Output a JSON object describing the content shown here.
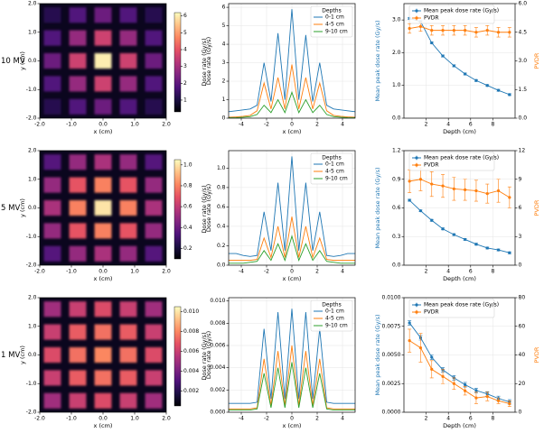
{
  "chart_data": [
    {
      "type": "heatmap",
      "row_label": "10 MV",
      "xlabel": "x (cm)",
      "ylabel": "y (cm)",
      "colorbar_label": "Dose rate (Gy/s)",
      "x": [
        -1.6,
        -0.8,
        0,
        0.8,
        1.6
      ],
      "y": [
        1.6,
        0.8,
        0,
        -0.8,
        -1.6
      ],
      "z": [
        [
          1.2,
          1.8,
          2.2,
          1.8,
          1.2
        ],
        [
          1.8,
          2.8,
          3.6,
          2.8,
          1.8
        ],
        [
          2.2,
          3.6,
          6.0,
          3.6,
          2.2
        ],
        [
          1.8,
          2.8,
          3.6,
          2.8,
          1.8
        ],
        [
          1.2,
          1.8,
          2.2,
          1.8,
          1.2
        ]
      ],
      "xlim": [
        -2,
        2
      ],
      "ylim": [
        -2,
        2
      ],
      "xticks": [
        {
          "value": -2,
          "label": "-2.0"
        },
        {
          "value": -1,
          "label": "-1.0"
        },
        {
          "value": 0,
          "label": "0.0"
        },
        {
          "value": 1,
          "label": "1.0"
        },
        {
          "value": 2,
          "label": "2.0"
        }
      ],
      "yticks": [
        {
          "value": -2,
          "label": "-2.0"
        },
        {
          "value": -1,
          "label": "-1.0"
        },
        {
          "value": 0,
          "label": "0.0"
        },
        {
          "value": 1,
          "label": "1.0"
        },
        {
          "value": 2,
          "label": "2.0"
        }
      ],
      "zlim": [
        0.3,
        6.2
      ],
      "zticks": [
        1,
        2,
        3,
        4,
        5,
        6
      ]
    },
    {
      "type": "line",
      "xlabel": "x (cm)",
      "ylabel": "Dose rate (Gy/s)",
      "legend_title": "Depths",
      "legend": "upper right",
      "grid": true,
      "x": [
        -5,
        -4.4,
        -3.85,
        -3.3,
        -2.75,
        -2.2,
        -1.65,
        -1.1,
        -0.55,
        0,
        0.55,
        1.1,
        1.65,
        2.2,
        2.75,
        3.3,
        3.85,
        4.4,
        5
      ],
      "xlim": [
        -5,
        5
      ],
      "xticks": [
        -4,
        -2,
        0,
        2,
        4
      ],
      "ylim": [
        0,
        6.2
      ],
      "yticks": [
        0,
        1,
        2,
        3,
        4,
        5,
        6
      ],
      "series": [
        {
          "name": "0-1 cm",
          "color": "#1f77b4",
          "values": [
            0.35,
            0.4,
            0.45,
            0.5,
            0.7,
            3.0,
            0.9,
            4.6,
            1.0,
            5.9,
            1.0,
            4.5,
            0.9,
            3.0,
            0.7,
            0.5,
            0.45,
            0.4,
            0.35
          ]
        },
        {
          "name": "4-5 cm",
          "color": "#ff7f0e",
          "values": [
            0.05,
            0.07,
            0.1,
            0.15,
            0.4,
            1.9,
            0.5,
            2.2,
            0.5,
            2.9,
            0.5,
            2.2,
            0.5,
            1.9,
            0.4,
            0.15,
            0.1,
            0.07,
            0.05
          ]
        },
        {
          "name": "9-10 cm",
          "color": "#2ca02c",
          "values": [
            0.02,
            0.03,
            0.05,
            0.08,
            0.2,
            0.7,
            0.3,
            1.0,
            0.3,
            1.4,
            0.3,
            1.0,
            0.3,
            0.7,
            0.2,
            0.08,
            0.05,
            0.03,
            0.02
          ]
        }
      ]
    },
    {
      "type": "dual_line",
      "xlabel": "Depth (cm)",
      "ylabel": "Mean peak dose rate (Gy/s)",
      "y2label": "PVDR",
      "grid": true,
      "x": [
        0.5,
        1.5,
        2.5,
        3.5,
        4.5,
        5.5,
        6.5,
        7.5,
        8.5,
        9.5
      ],
      "xlim": [
        0,
        10
      ],
      "xticks": [
        2,
        4,
        6,
        8
      ],
      "ylim": [
        0,
        3.5
      ],
      "yticks": [
        {
          "value": 0,
          "label": "0.0"
        },
        {
          "value": 1,
          "label": "1.0"
        },
        {
          "value": 2,
          "label": "2.0"
        },
        {
          "value": 3,
          "label": "3.0"
        }
      ],
      "y2lim": [
        0,
        6
      ],
      "y2ticks": [
        {
          "value": 0,
          "label": "0.0"
        },
        1.5,
        {
          "value": 3,
          "label": "3.0"
        },
        4.5,
        {
          "value": 6,
          "label": "6.0"
        }
      ],
      "series": [
        {
          "name": "Mean peak dose rate (Gy/s)",
          "color": "#1f77b4",
          "values": [
            3.05,
            2.95,
            2.3,
            1.9,
            1.6,
            1.35,
            1.15,
            1.0,
            0.85,
            0.72
          ],
          "errors": [
            0.03,
            0.03,
            0.03,
            0.03,
            0.03,
            0.03,
            0.03,
            0.03,
            0.03,
            0.03
          ]
        },
        {
          "name": "PVDR",
          "color": "#ff7f0e",
          "axis": "y2",
          "values": [
            4.7,
            4.8,
            4.6,
            4.6,
            4.6,
            4.6,
            4.5,
            4.6,
            4.5,
            4.5
          ],
          "errors": [
            0.25,
            0.25,
            0.25,
            0.25,
            0.25,
            0.25,
            0.25,
            0.25,
            0.25,
            0.25
          ]
        }
      ]
    },
    {
      "type": "heatmap",
      "row_label": "5 MV",
      "xlabel": "x (cm)",
      "ylabel": "y (cm)",
      "colorbar_label": "Dose rate (Gy/s)",
      "x": [
        -1.6,
        -0.8,
        0,
        0.8,
        1.6
      ],
      "y": [
        1.6,
        0.8,
        0,
        -0.8,
        -1.6
      ],
      "z": [
        [
          0.35,
          0.5,
          0.55,
          0.5,
          0.35
        ],
        [
          0.5,
          0.7,
          0.8,
          0.7,
          0.5
        ],
        [
          0.55,
          0.8,
          1.0,
          0.8,
          0.55
        ],
        [
          0.5,
          0.7,
          0.8,
          0.7,
          0.5
        ],
        [
          0.35,
          0.5,
          0.55,
          0.5,
          0.35
        ]
      ],
      "xlim": [
        -2,
        2
      ],
      "ylim": [
        -2,
        2
      ],
      "xticks": [
        {
          "value": -2,
          "label": "-2.0"
        },
        {
          "value": -1,
          "label": "-1.0"
        },
        {
          "value": 0,
          "label": "0.0"
        },
        {
          "value": 1,
          "label": "1.0"
        },
        {
          "value": 2,
          "label": "2.0"
        }
      ],
      "yticks": [
        {
          "value": -2,
          "label": "-2.0"
        },
        {
          "value": -1,
          "label": "-1.0"
        },
        {
          "value": 0,
          "label": "0.0"
        },
        {
          "value": 1,
          "label": "1.0"
        },
        {
          "value": 2,
          "label": "2.0"
        }
      ],
      "zlim": [
        0.1,
        1.05
      ],
      "zticks": [
        0.2,
        0.4,
        0.6,
        0.8,
        {
          "value": 1,
          "label": "1.0"
        }
      ]
    },
    {
      "type": "line",
      "xlabel": "x (cm)",
      "ylabel": "Dose rate (Gy/s)",
      "legend_title": "Depths",
      "legend": "upper right",
      "grid": true,
      "x": [
        -5,
        -4.4,
        -3.85,
        -3.3,
        -2.75,
        -2.2,
        -1.65,
        -1.1,
        -0.55,
        0,
        0.55,
        1.1,
        1.65,
        2.2,
        2.75,
        3.3,
        3.85,
        4.4,
        5
      ],
      "xlim": [
        -5,
        5
      ],
      "xticks": [
        -4,
        -2,
        0,
        2,
        4
      ],
      "ylim": [
        0,
        1.18
      ],
      "yticks": [
        {
          "value": 0,
          "label": "0.0"
        },
        0.2,
        0.4,
        0.6,
        0.8,
        {
          "value": 1,
          "label": "1.0"
        }
      ],
      "series": [
        {
          "name": "0-1 cm",
          "color": "#1f77b4",
          "values": [
            0.12,
            0.12,
            0.1,
            0.09,
            0.1,
            0.55,
            0.15,
            0.85,
            0.15,
            1.12,
            0.15,
            0.85,
            0.15,
            0.55,
            0.1,
            0.09,
            0.1,
            0.12,
            0.12
          ]
        },
        {
          "name": "4-5 cm",
          "color": "#ff7f0e",
          "values": [
            0.05,
            0.05,
            0.05,
            0.05,
            0.06,
            0.28,
            0.08,
            0.4,
            0.08,
            0.5,
            0.08,
            0.4,
            0.08,
            0.28,
            0.06,
            0.05,
            0.05,
            0.05,
            0.05
          ]
        },
        {
          "name": "9-10 cm",
          "color": "#2ca02c",
          "values": [
            0.02,
            0.02,
            0.02,
            0.03,
            0.04,
            0.15,
            0.05,
            0.22,
            0.05,
            0.3,
            0.05,
            0.22,
            0.05,
            0.15,
            0.04,
            0.03,
            0.02,
            0.02,
            0.02
          ]
        }
      ]
    },
    {
      "type": "dual_line",
      "xlabel": "Depth (cm)",
      "ylabel": "Mean peak dose rate (Gy/s)",
      "y2label": "PVDR",
      "grid": true,
      "x": [
        0.5,
        1.5,
        2.5,
        3.5,
        4.5,
        5.5,
        6.5,
        7.5,
        8.5,
        9.5
      ],
      "xlim": [
        0,
        10
      ],
      "xticks": [
        2,
        4,
        6,
        8
      ],
      "ylim": [
        0,
        1.2
      ],
      "yticks": [
        {
          "value": 0,
          "label": "0.0"
        },
        0.3,
        0.6,
        0.9,
        1.2
      ],
      "y2lim": [
        0,
        12
      ],
      "y2ticks": [
        0,
        3,
        6,
        9,
        12
      ],
      "series": [
        {
          "name": "Mean peak dose rate (Gy/s)",
          "color": "#1f77b4",
          "values": [
            0.68,
            0.57,
            0.47,
            0.38,
            0.32,
            0.27,
            0.22,
            0.18,
            0.16,
            0.13
          ],
          "errors": [
            0.01,
            0.01,
            0.01,
            0.01,
            0.01,
            0.01,
            0.01,
            0.01,
            0.01,
            0.01
          ]
        },
        {
          "name": "PVDR",
          "color": "#ff7f0e",
          "axis": "y2",
          "values": [
            8.8,
            9.0,
            8.5,
            8.3,
            8.0,
            7.9,
            7.8,
            7.5,
            7.8,
            7.1
          ],
          "errors": [
            1.2,
            1.2,
            1.3,
            1.2,
            1.2,
            1.1,
            1.1,
            1.0,
            1.2,
            1.1
          ]
        }
      ]
    },
    {
      "type": "heatmap",
      "row_label": "1 MV",
      "xlabel": "x (cm)",
      "ylabel": "y (cm)",
      "colorbar_label": "Dose rate (Gy/s)",
      "x": [
        -1.6,
        -0.8,
        0,
        0.8,
        1.6
      ],
      "y": [
        1.6,
        0.8,
        0,
        -0.8,
        -1.6
      ],
      "z": [
        [
          0.005,
          0.006,
          0.0065,
          0.006,
          0.005
        ],
        [
          0.006,
          0.007,
          0.0075,
          0.007,
          0.006
        ],
        [
          0.0065,
          0.0075,
          0.008,
          0.0075,
          0.0065
        ],
        [
          0.006,
          0.007,
          0.0075,
          0.007,
          0.006
        ],
        [
          0.005,
          0.006,
          0.0065,
          0.006,
          0.005
        ]
      ],
      "xlim": [
        -2,
        2
      ],
      "ylim": [
        -2,
        2
      ],
      "xticks": [
        {
          "value": -2,
          "label": "-2.0"
        },
        {
          "value": -1,
          "label": "-1.0"
        },
        {
          "value": 0,
          "label": "0.0"
        },
        {
          "value": 1,
          "label": "1.0"
        },
        {
          "value": 2,
          "label": "2.0"
        }
      ],
      "yticks": [
        {
          "value": -2,
          "label": "-2.0"
        },
        {
          "value": -1,
          "label": "-1.0"
        },
        {
          "value": 0,
          "label": "0.0"
        },
        {
          "value": 1,
          "label": "1.0"
        },
        {
          "value": 2,
          "label": "2.0"
        }
      ],
      "zlim": [
        0.0005,
        0.0105
      ],
      "zticks": [
        0.002,
        0.004,
        0.006,
        0.008,
        {
          "value": 0.01,
          "label": "0.010"
        }
      ]
    },
    {
      "type": "line",
      "xlabel": "x (cm)",
      "ylabel": "Dose rate (Gy/s)",
      "legend_title": "Depths",
      "legend": "upper right",
      "grid": true,
      "x": [
        -5,
        -4.4,
        -3.85,
        -3.3,
        -2.75,
        -2.2,
        -1.65,
        -1.1,
        -0.55,
        0,
        0.55,
        1.1,
        1.65,
        2.2,
        2.75,
        3.3,
        3.85,
        4.4,
        5
      ],
      "xlim": [
        -5,
        5
      ],
      "xticks": [
        -4,
        -2,
        0,
        2,
        4
      ],
      "ylim": [
        0,
        0.0103
      ],
      "yticks": [
        {
          "value": 0,
          "label": "0.000"
        },
        0.002,
        0.004,
        0.006,
        0.008,
        {
          "value": 0.01,
          "label": "0.010"
        }
      ],
      "series": [
        {
          "name": "0-1 cm",
          "color": "#1f77b4",
          "values": [
            0.0008,
            0.0008,
            0.0008,
            0.0008,
            0.0009,
            0.0075,
            0.0012,
            0.009,
            0.0012,
            0.0093,
            0.0012,
            0.009,
            0.0012,
            0.0075,
            0.0009,
            0.0008,
            0.0008,
            0.0008,
            0.0008
          ]
        },
        {
          "name": "4-5 cm",
          "color": "#ff7f0e",
          "values": [
            0.0003,
            0.0003,
            0.0003,
            0.0003,
            0.0004,
            0.0048,
            0.0006,
            0.0055,
            0.0006,
            0.006,
            0.0006,
            0.0055,
            0.0006,
            0.0048,
            0.0004,
            0.0003,
            0.0003,
            0.0003,
            0.0003
          ]
        },
        {
          "name": "9-10 cm",
          "color": "#2ca02c",
          "values": [
            0.0002,
            0.0002,
            0.0002,
            0.0002,
            0.0003,
            0.0035,
            0.0004,
            0.004,
            0.0004,
            0.0045,
            0.0004,
            0.004,
            0.0004,
            0.0035,
            0.0003,
            0.0002,
            0.0002,
            0.0002,
            0.0002
          ]
        }
      ]
    },
    {
      "type": "dual_line",
      "xlabel": "Depth (cm)",
      "ylabel": "Mean peak dose rate (Gy/s)",
      "y2label": "PVDR",
      "grid": true,
      "x": [
        0.5,
        1.5,
        2.5,
        3.5,
        4.5,
        5.5,
        6.5,
        7.5,
        8.5,
        9.5
      ],
      "xlim": [
        0,
        10
      ],
      "xticks": [
        2,
        4,
        6,
        8
      ],
      "ylim": [
        0,
        0.01
      ],
      "yticks": [
        {
          "value": 0,
          "label": "0.0000"
        },
        0.0025,
        {
          "value": 0.005,
          "label": "0.0050"
        },
        0.0075,
        {
          "value": 0.01,
          "label": "0.0100"
        }
      ],
      "y2lim": [
        0,
        80
      ],
      "y2ticks": [
        0,
        20,
        40,
        60,
        80
      ],
      "series": [
        {
          "name": "Mean peak dose rate (Gy/s)",
          "color": "#1f77b4",
          "values": [
            0.0078,
            0.0065,
            0.0048,
            0.0037,
            0.003,
            0.0024,
            0.0019,
            0.0016,
            0.0012,
            0.0009
          ],
          "errors": [
            0.0002,
            0.0002,
            0.0002,
            0.0002,
            0.0002,
            0.0002,
            0.0002,
            0.0002,
            0.0002,
            0.0002
          ]
        },
        {
          "name": "PVDR",
          "color": "#ff7f0e",
          "axis": "y2",
          "values": [
            50,
            45,
            30,
            25,
            20,
            15,
            10,
            11,
            8,
            6
          ],
          "errors": [
            8,
            10,
            6,
            5,
            4,
            3,
            4,
            3,
            2,
            2
          ]
        }
      ]
    }
  ]
}
